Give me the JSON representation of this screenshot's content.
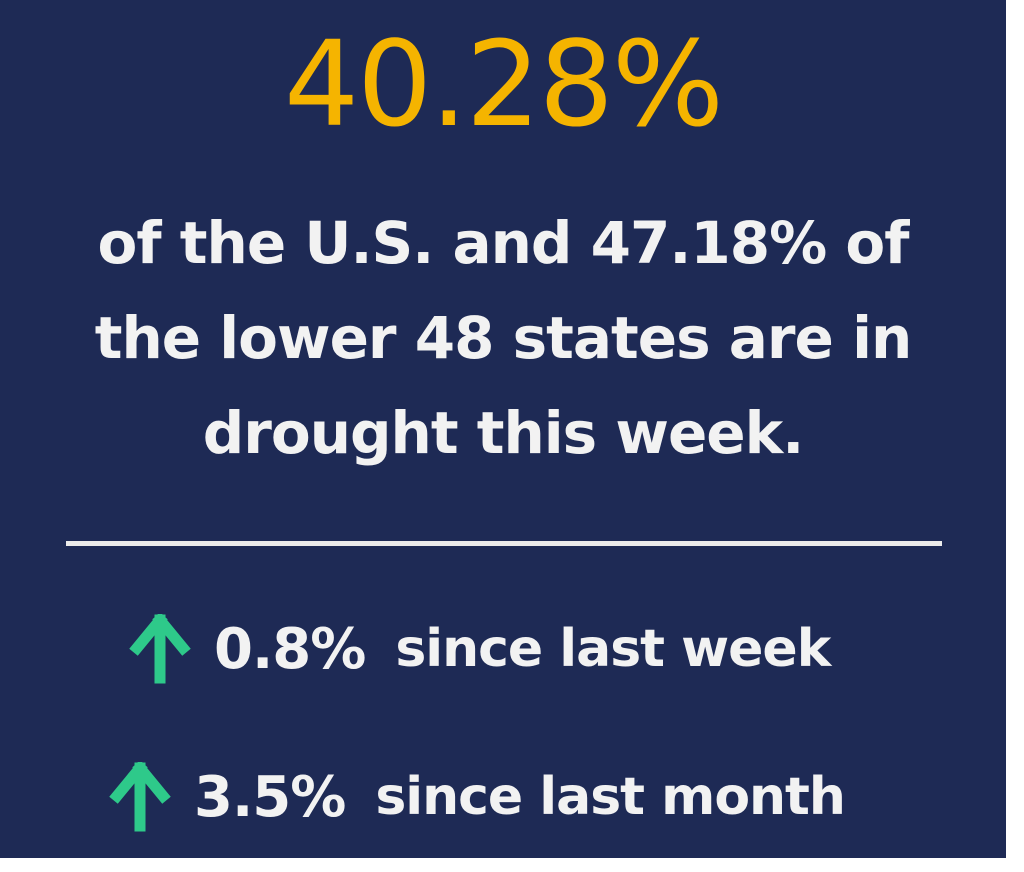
{
  "headline": {
    "value": "40.28%",
    "color": "#f5b400"
  },
  "description": {
    "lines": [
      "of the U.S. and 47.18% of",
      "the lower 48 states are in",
      "drought this week."
    ]
  },
  "stats": [
    {
      "icon": "arrow-up-icon",
      "value": "0.8%",
      "label": "since last week",
      "arrow_color": "#2ec98a"
    },
    {
      "icon": "arrow-up-icon",
      "value": "3.5%",
      "label": "since last month",
      "arrow_color": "#2ec98a"
    }
  ],
  "colors": {
    "background": "#1e2a55",
    "text": "#f2f2f2",
    "divider": "#ebebeb"
  }
}
